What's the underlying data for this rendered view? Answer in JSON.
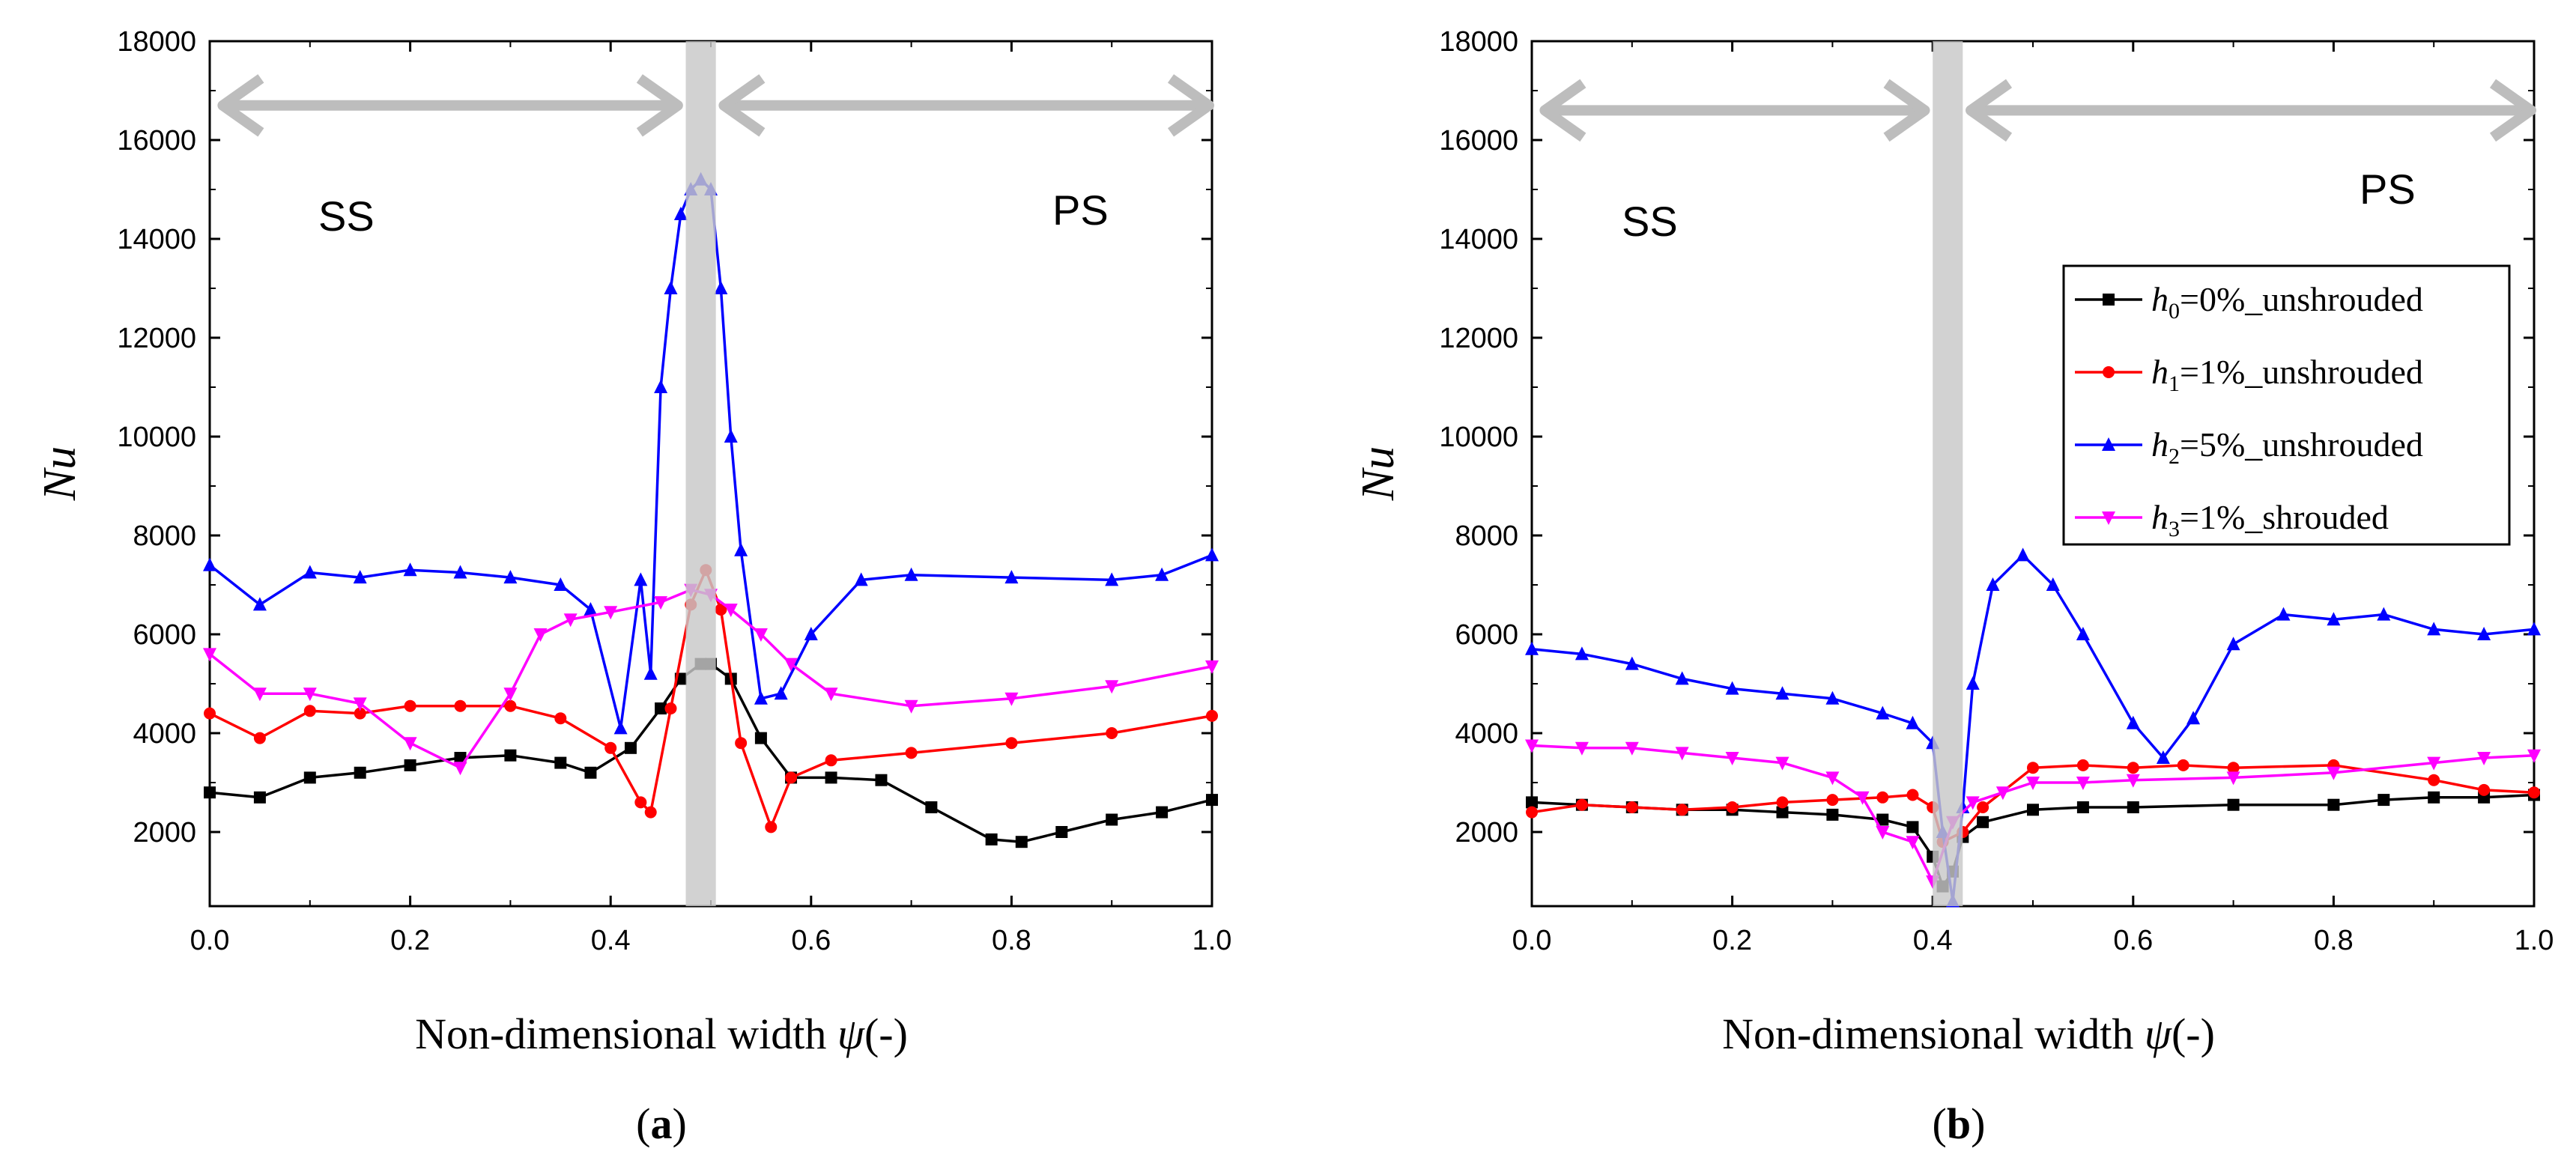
{
  "panels": [
    {
      "id": "a",
      "caption_open": "(",
      "caption_letter": "a",
      "caption_close": ")",
      "ylabel": "Nu",
      "xlabel": "Non-dimensional width ",
      "xlabel_symbol": "ψ",
      "xlabel_unit": "(-)",
      "ss_label": "SS",
      "ps_label": "PS",
      "show_legend": false
    },
    {
      "id": "b",
      "caption_open": "(",
      "caption_letter": "b",
      "caption_close": ")",
      "ylabel": "Nu",
      "xlabel": "Non-dimensional width ",
      "xlabel_symbol": "ψ",
      "xlabel_unit": "(-)",
      "ss_label": "SS",
      "ps_label": "PS",
      "show_legend": true
    }
  ],
  "chart_data": [
    {
      "type": "line",
      "panel": "a",
      "xlim": [
        0,
        1.0
      ],
      "ylim": [
        500,
        18000
      ],
      "xticks": [
        "0.0",
        "0.2",
        "0.4",
        "0.6",
        "0.8",
        "1.0"
      ],
      "yticks": [
        "2000",
        "4000",
        "6000",
        "8000",
        "10000",
        "12000",
        "14000",
        "16000",
        "18000"
      ],
      "xlabel": "Non-dimensional width ψ(-)",
      "ylabel": "Nu",
      "shaded_band": [
        0.475,
        0.505
      ],
      "ss_arrow": [
        0.01,
        0.47
      ],
      "ps_arrow": [
        0.51,
        1.0
      ],
      "arrow_y": 16700,
      "series": [
        {
          "name": "h0=0%_unshrouded",
          "color": "#000000",
          "marker": "square",
          "x": [
            0,
            0.05,
            0.1,
            0.15,
            0.2,
            0.25,
            0.3,
            0.35,
            0.38,
            0.42,
            0.45,
            0.47,
            0.49,
            0.5,
            0.52,
            0.55,
            0.58,
            0.62,
            0.67,
            0.72,
            0.78,
            0.81,
            0.85,
            0.9,
            0.95,
            1.0
          ],
          "y": [
            2800,
            2700,
            3100,
            3200,
            3350,
            3500,
            3550,
            3400,
            3200,
            3700,
            4500,
            5100,
            5400,
            5400,
            5100,
            3900,
            3100,
            3100,
            3050,
            2500,
            1850,
            1800,
            2000,
            2250,
            2400,
            2650
          ]
        },
        {
          "name": "h1=1%_unshrouded",
          "color": "#ff0000",
          "marker": "circle",
          "x": [
            0,
            0.05,
            0.1,
            0.15,
            0.2,
            0.25,
            0.3,
            0.35,
            0.4,
            0.43,
            0.44,
            0.46,
            0.48,
            0.495,
            0.51,
            0.53,
            0.56,
            0.58,
            0.62,
            0.7,
            0.8,
            0.9,
            1.0
          ],
          "y": [
            4400,
            3900,
            4450,
            4400,
            4550,
            4550,
            4550,
            4300,
            3700,
            2600,
            2400,
            4500,
            6600,
            7300,
            6500,
            3800,
            2100,
            3100,
            3450,
            3600,
            3800,
            4000,
            4350
          ]
        },
        {
          "name": "h2=5%_unshrouded",
          "color": "#0000ff",
          "marker": "triangle-up",
          "x": [
            0,
            0.05,
            0.1,
            0.15,
            0.2,
            0.25,
            0.3,
            0.35,
            0.38,
            0.41,
            0.43,
            0.44,
            0.45,
            0.46,
            0.47,
            0.48,
            0.49,
            0.5,
            0.51,
            0.52,
            0.53,
            0.55,
            0.57,
            0.6,
            0.65,
            0.7,
            0.8,
            0.9,
            0.95,
            1.0
          ],
          "y": [
            7400,
            6600,
            7250,
            7150,
            7300,
            7250,
            7150,
            7000,
            6500,
            4100,
            7100,
            5200,
            11000,
            13000,
            14500,
            15000,
            15200,
            15000,
            13000,
            10000,
            7700,
            4700,
            4800,
            6000,
            7100,
            7200,
            7150,
            7100,
            7200,
            7600
          ]
        },
        {
          "name": "h3=1%_shrouded",
          "color": "#ff00ff",
          "marker": "triangle-down",
          "x": [
            0,
            0.05,
            0.1,
            0.15,
            0.2,
            0.25,
            0.3,
            0.33,
            0.36,
            0.4,
            0.45,
            0.48,
            0.5,
            0.52,
            0.55,
            0.58,
            0.62,
            0.7,
            0.8,
            0.9,
            1.0
          ],
          "y": [
            5600,
            4800,
            4800,
            4600,
            3800,
            3300,
            4800,
            6000,
            6300,
            6450,
            6650,
            6900,
            6800,
            6500,
            6000,
            5400,
            4800,
            4550,
            4700,
            4950,
            5350
          ]
        }
      ]
    },
    {
      "type": "line",
      "panel": "b",
      "xlim": [
        0,
        1.0
      ],
      "ylim": [
        500,
        18000
      ],
      "xticks": [
        "0.0",
        "0.2",
        "0.4",
        "0.6",
        "0.8",
        "1.0"
      ],
      "yticks": [
        "2000",
        "4000",
        "6000",
        "8000",
        "10000",
        "12000",
        "14000",
        "16000",
        "18000"
      ],
      "xlabel": "Non-dimensional width ψ(-)",
      "ylabel": "Nu",
      "shaded_band": [
        0.4,
        0.43
      ],
      "ss_arrow": [
        0.01,
        0.395
      ],
      "ps_arrow": [
        0.435,
        1.0
      ],
      "arrow_y": 16600,
      "series": [
        {
          "name": "h0=0%_unshrouded",
          "color": "#000000",
          "marker": "square",
          "x": [
            0,
            0.05,
            0.1,
            0.15,
            0.2,
            0.25,
            0.3,
            0.35,
            0.38,
            0.4,
            0.41,
            0.42,
            0.43,
            0.45,
            0.5,
            0.55,
            0.6,
            0.7,
            0.8,
            0.85,
            0.9,
            0.95,
            1.0
          ],
          "y": [
            2600,
            2550,
            2500,
            2450,
            2450,
            2400,
            2350,
            2250,
            2100,
            1500,
            900,
            1200,
            1900,
            2200,
            2450,
            2500,
            2500,
            2550,
            2550,
            2650,
            2700,
            2700,
            2750
          ]
        },
        {
          "name": "h1=1%_unshrouded",
          "color": "#ff0000",
          "marker": "circle",
          "x": [
            0,
            0.05,
            0.1,
            0.15,
            0.2,
            0.25,
            0.3,
            0.35,
            0.38,
            0.4,
            0.41,
            0.43,
            0.45,
            0.5,
            0.55,
            0.6,
            0.65,
            0.7,
            0.8,
            0.9,
            0.95,
            1.0
          ],
          "y": [
            2400,
            2550,
            2500,
            2450,
            2500,
            2600,
            2650,
            2700,
            2750,
            2500,
            1800,
            2000,
            2500,
            3300,
            3350,
            3300,
            3350,
            3300,
            3350,
            3050,
            2850,
            2800
          ]
        },
        {
          "name": "h2=5%_unshrouded",
          "color": "#0000ff",
          "marker": "triangle-up",
          "x": [
            0,
            0.05,
            0.1,
            0.15,
            0.2,
            0.25,
            0.3,
            0.35,
            0.38,
            0.4,
            0.41,
            0.42,
            0.43,
            0.44,
            0.46,
            0.49,
            0.52,
            0.55,
            0.6,
            0.63,
            0.66,
            0.7,
            0.75,
            0.8,
            0.85,
            0.9,
            0.95,
            1.0
          ],
          "y": [
            5700,
            5600,
            5400,
            5100,
            4900,
            4800,
            4700,
            4400,
            4200,
            3800,
            2000,
            600,
            2500,
            5000,
            7000,
            7600,
            7000,
            6000,
            4200,
            3500,
            4300,
            5800,
            6400,
            6300,
            6400,
            6100,
            6000,
            6100
          ]
        },
        {
          "name": "h3=1%_shrouded",
          "color": "#ff00ff",
          "marker": "triangle-down",
          "x": [
            0,
            0.05,
            0.1,
            0.15,
            0.2,
            0.25,
            0.3,
            0.33,
            0.35,
            0.38,
            0.4,
            0.42,
            0.44,
            0.47,
            0.5,
            0.55,
            0.6,
            0.7,
            0.8,
            0.9,
            0.95,
            1.0
          ],
          "y": [
            3750,
            3700,
            3700,
            3600,
            3500,
            3400,
            3100,
            2700,
            2000,
            1800,
            1000,
            2200,
            2600,
            2800,
            3000,
            3000,
            3050,
            3100,
            3200,
            3400,
            3500,
            3550
          ]
        }
      ]
    }
  ],
  "legend": {
    "items": [
      {
        "sym": "h",
        "sub": "0",
        "rest": "=0%_unshrouded"
      },
      {
        "sym": "h",
        "sub": "1",
        "rest": "=1%_unshrouded"
      },
      {
        "sym": "h",
        "sub": "2",
        "rest": "=5%_unshrouded"
      },
      {
        "sym": "h",
        "sub": "3",
        "rest": "=1%_shrouded"
      }
    ]
  }
}
